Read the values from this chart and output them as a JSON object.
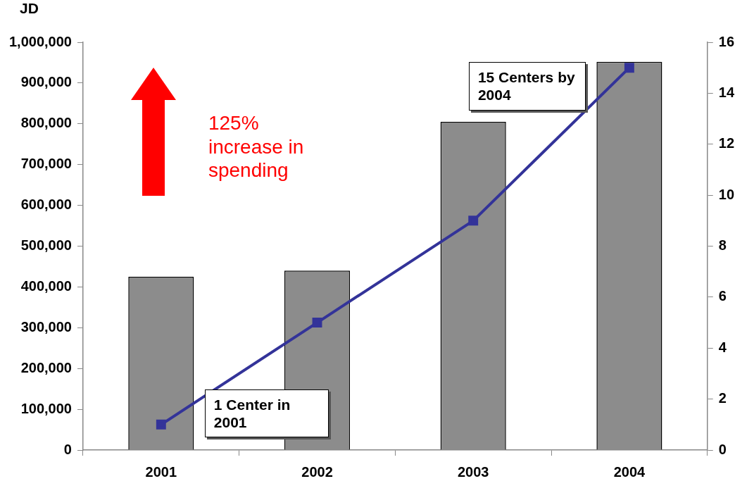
{
  "chart_data": {
    "type": "bar",
    "ylabel": "JD",
    "categories": [
      "2001",
      "2002",
      "2003",
      "2004"
    ],
    "series": [
      {
        "color": "#8c8c8c",
        "values": [
          425000,
          440000,
          805000,
          952000
        ]
      },
      {
        "type": "line",
        "axis": "y2",
        "color": "#333399",
        "values": [
          1,
          5,
          9,
          15
        ]
      }
    ],
    "ylim": [
      0,
      1000000
    ],
    "yticks": [
      0,
      {
        "value": 100000,
        "label": "100,000"
      },
      {
        "value": 200000,
        "label": "200,000"
      },
      {
        "value": 300000,
        "label": "300,000"
      },
      {
        "value": 400000,
        "label": "400,000"
      },
      {
        "value": 500000,
        "label": "500,000"
      },
      {
        "value": 600000,
        "label": "600,000"
      },
      {
        "value": 700000,
        "label": "700,000"
      },
      {
        "value": 800000,
        "label": "800,000"
      },
      {
        "value": 900000,
        "label": "900,000"
      },
      {
        "value": 1000000,
        "label": "1,000,000"
      }
    ],
    "y2lim": [
      0,
      16
    ],
    "y2ticks": [
      0,
      2,
      4,
      6,
      8,
      10,
      12,
      14,
      16
    ],
    "grid": false,
    "legend": false,
    "marker": "square",
    "line_style": "solid",
    "annotations": [
      "125% increase in spending",
      "1 Center in 2001",
      "15 Centers by 2004"
    ]
  }
}
